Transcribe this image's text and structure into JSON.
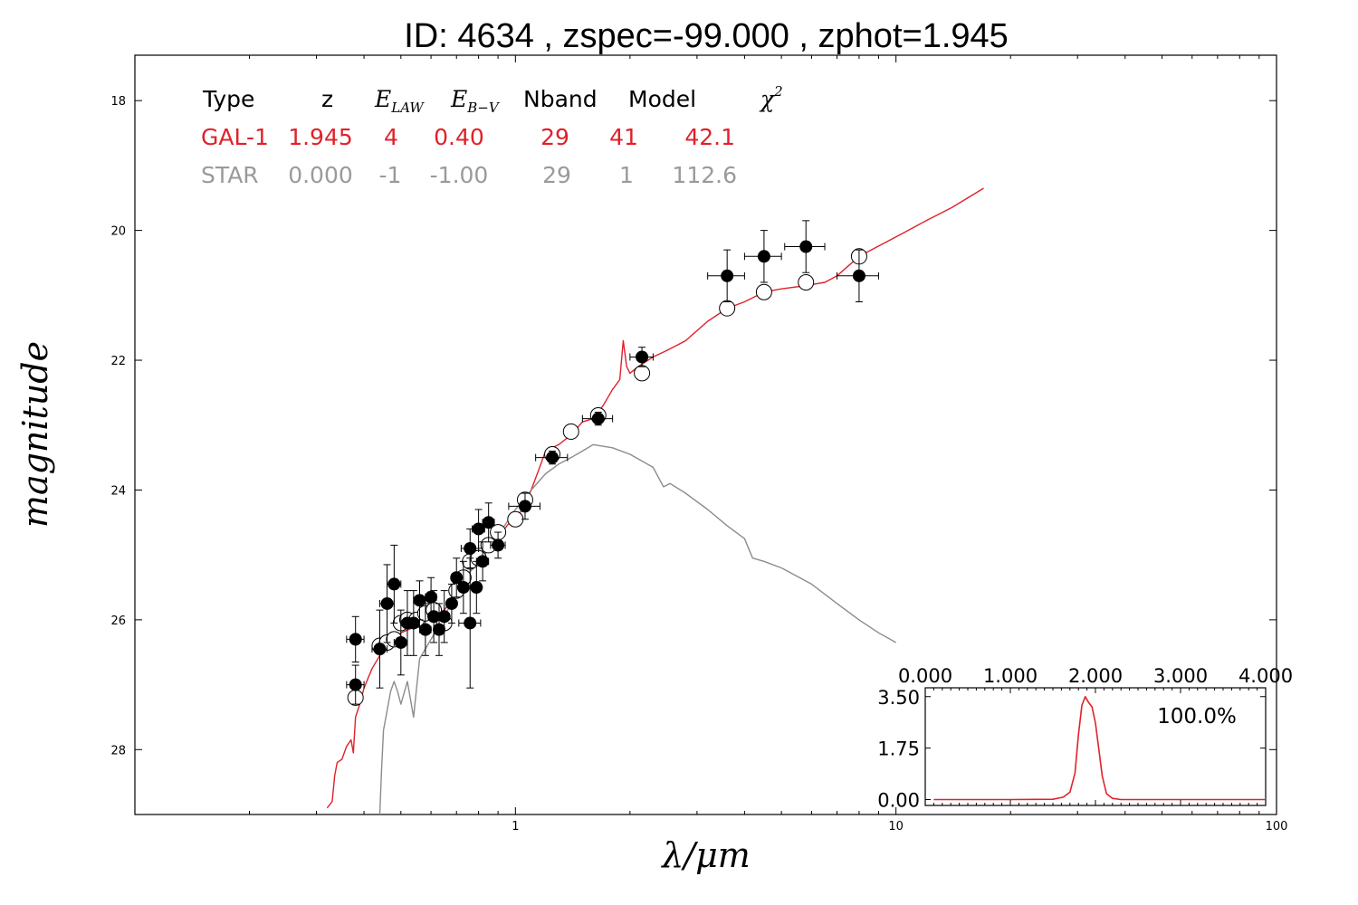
{
  "title": "ID:  4634  , zspec=-99.000 , zphot=1.945",
  "colors": {
    "galaxy": "#e0212a",
    "star": "#8c8c8c",
    "points": "#000000"
  },
  "table": {
    "headers": {
      "type": "Type",
      "z": "z",
      "elaw_main": "E",
      "elaw_sub": "LAW",
      "ebv_main": "E",
      "ebv_sub": "B−V",
      "nband": "Nband",
      "model": "Model",
      "chi_main": "χ",
      "chi_sup": "2"
    },
    "rows": [
      {
        "type": "GAL-1",
        "z": "1.945",
        "elaw": "4",
        "ebv": "0.40",
        "nband": "29",
        "model": "41",
        "chi2": "42.1",
        "color": "#e0212a"
      },
      {
        "type": "STAR",
        "z": "0.000",
        "elaw": "-1",
        "ebv": "-1.00",
        "nband": "29",
        "model": "1",
        "chi2": "112.6",
        "color": "#9a9a9a"
      }
    ]
  },
  "chart_data": [
    {
      "type": "scatter",
      "title": "ID:  4634  , zspec=-99.000 , zphot=1.945",
      "xlabel": "λ/μm",
      "ylabel": "magnitude",
      "xscale": "log",
      "xlim": [
        0.1,
        100
      ],
      "ylim": [
        29.0,
        17.3
      ],
      "xticks": [
        1,
        10,
        100
      ],
      "xtick_labels": [
        "1",
        "10",
        "100"
      ],
      "yticks": [
        18,
        20,
        22,
        24,
        26,
        28
      ],
      "ytick_labels": [
        "18",
        "20",
        "22",
        "24",
        "26",
        "28"
      ],
      "grid": false,
      "observed": [
        {
          "x": 0.38,
          "y": 26.3,
          "ye": 0.35,
          "xe": 0.02
        },
        {
          "x": 0.38,
          "y": 27.0,
          "ye": 0.3,
          "xe": 0.02
        },
        {
          "x": 0.44,
          "y": 26.45,
          "ye": 0.6,
          "xe": 0.02
        },
        {
          "x": 0.46,
          "y": 25.75,
          "ye": 0.6,
          "xe": 0.02
        },
        {
          "x": 0.48,
          "y": 25.45,
          "ye": 0.6,
          "xe": 0.02
        },
        {
          "x": 0.5,
          "y": 26.35,
          "ye": 0.5,
          "xe": 0.02
        },
        {
          "x": 0.52,
          "y": 26.05,
          "ye": 0.5,
          "xe": 0.02
        },
        {
          "x": 0.54,
          "y": 26.05,
          "ye": 0.5,
          "xe": 0.02
        },
        {
          "x": 0.56,
          "y": 25.7,
          "ye": 0.3,
          "xe": 0.02
        },
        {
          "x": 0.58,
          "y": 26.15,
          "ye": 0.4,
          "xe": 0.02
        },
        {
          "x": 0.6,
          "y": 25.65,
          "ye": 0.3,
          "xe": 0.02
        },
        {
          "x": 0.61,
          "y": 25.95,
          "ye": 0.4,
          "xe": 0.02
        },
        {
          "x": 0.63,
          "y": 26.15,
          "ye": 0.4,
          "xe": 0.02
        },
        {
          "x": 0.65,
          "y": 25.95,
          "ye": 0.4,
          "xe": 0.02
        },
        {
          "x": 0.68,
          "y": 25.75,
          "ye": 0.3,
          "xe": 0.02
        },
        {
          "x": 0.7,
          "y": 25.35,
          "ye": 0.3,
          "xe": 0.02
        },
        {
          "x": 0.73,
          "y": 25.5,
          "ye": 0.4,
          "xe": 0.02
        },
        {
          "x": 0.76,
          "y": 26.05,
          "ye": 1.0,
          "xe": 0.05
        },
        {
          "x": 0.76,
          "y": 24.9,
          "ye": 0.3,
          "xe": 0.04
        },
        {
          "x": 0.79,
          "y": 25.5,
          "ye": 0.4,
          "xe": 0.02
        },
        {
          "x": 0.8,
          "y": 24.6,
          "ye": 0.3,
          "xe": 0.03
        },
        {
          "x": 0.82,
          "y": 25.1,
          "ye": 0.3,
          "xe": 0.03
        },
        {
          "x": 0.85,
          "y": 24.5,
          "ye": 0.3,
          "xe": 0.03
        },
        {
          "x": 0.9,
          "y": 24.85,
          "ye": 0.2,
          "xe": 0.04
        },
        {
          "x": 1.06,
          "y": 24.25,
          "ye": 0.2,
          "xe": 0.1
        },
        {
          "x": 1.25,
          "y": 23.5,
          "ye": 0.1,
          "xe": 0.12
        },
        {
          "x": 1.65,
          "y": 22.9,
          "ye": 0.1,
          "xe": 0.15
        },
        {
          "x": 2.15,
          "y": 21.95,
          "ye": 0.15,
          "xe": 0.15
        },
        {
          "x": 3.6,
          "y": 20.7,
          "ye": 0.4,
          "xe": 0.4
        },
        {
          "x": 4.5,
          "y": 20.4,
          "ye": 0.4,
          "xe": 0.5
        },
        {
          "x": 5.8,
          "y": 20.25,
          "ye": 0.4,
          "xe": 0.7
        },
        {
          "x": 8.0,
          "y": 20.7,
          "ye": 0.4,
          "xe": 1.0
        }
      ],
      "model_magnitudes": [
        {
          "x": 0.38,
          "y": 27.2
        },
        {
          "x": 0.44,
          "y": 26.4
        },
        {
          "x": 0.46,
          "y": 26.35
        },
        {
          "x": 0.48,
          "y": 26.3
        },
        {
          "x": 0.5,
          "y": 26.05
        },
        {
          "x": 0.52,
          "y": 26.0
        },
        {
          "x": 0.55,
          "y": 26.0
        },
        {
          "x": 0.58,
          "y": 25.9
        },
        {
          "x": 0.61,
          "y": 25.85
        },
        {
          "x": 0.65,
          "y": 26.05
        },
        {
          "x": 0.7,
          "y": 25.55
        },
        {
          "x": 0.73,
          "y": 25.35
        },
        {
          "x": 0.76,
          "y": 25.1
        },
        {
          "x": 0.8,
          "y": 25.05
        },
        {
          "x": 0.85,
          "y": 24.85
        },
        {
          "x": 0.9,
          "y": 24.65
        },
        {
          "x": 1.0,
          "y": 24.45
        },
        {
          "x": 1.06,
          "y": 24.15
        },
        {
          "x": 1.25,
          "y": 23.45
        },
        {
          "x": 1.4,
          "y": 23.1
        },
        {
          "x": 1.65,
          "y": 22.85
        },
        {
          "x": 2.15,
          "y": 22.2
        },
        {
          "x": 3.6,
          "y": 21.2
        },
        {
          "x": 4.5,
          "y": 20.95
        },
        {
          "x": 5.8,
          "y": 20.8
        },
        {
          "x": 8.0,
          "y": 20.4
        }
      ],
      "series": [
        {
          "color": "#e0212a",
          "points": [
            [
              0.32,
              28.9
            ],
            [
              0.33,
              28.8
            ],
            [
              0.335,
              28.4
            ],
            [
              0.34,
              28.2
            ],
            [
              0.35,
              28.15
            ],
            [
              0.36,
              27.95
            ],
            [
              0.37,
              27.85
            ],
            [
              0.375,
              28.05
            ],
            [
              0.38,
              27.5
            ],
            [
              0.39,
              27.3
            ],
            [
              0.4,
              27.05
            ],
            [
              0.42,
              26.75
            ],
            [
              0.44,
              26.55
            ],
            [
              0.46,
              26.4
            ],
            [
              0.5,
              26.2
            ],
            [
              0.55,
              26.1
            ],
            [
              0.6,
              25.95
            ],
            [
              0.65,
              25.85
            ],
            [
              0.7,
              25.6
            ],
            [
              0.75,
              25.3
            ],
            [
              0.8,
              25.1
            ],
            [
              0.9,
              24.75
            ],
            [
              0.95,
              24.55
            ],
            [
              1.0,
              24.4
            ],
            [
              1.05,
              24.3
            ],
            [
              1.1,
              24.0
            ],
            [
              1.15,
              23.7
            ],
            [
              1.2,
              23.4
            ],
            [
              1.3,
              23.3
            ],
            [
              1.4,
              23.15
            ],
            [
              1.5,
              22.95
            ],
            [
              1.6,
              22.9
            ],
            [
              1.7,
              22.7
            ],
            [
              1.8,
              22.45
            ],
            [
              1.88,
              22.3
            ],
            [
              1.92,
              21.7
            ],
            [
              1.96,
              22.1
            ],
            [
              2.0,
              22.2
            ],
            [
              2.1,
              22.1
            ],
            [
              2.3,
              21.95
            ],
            [
              2.5,
              21.85
            ],
            [
              2.8,
              21.7
            ],
            [
              3.2,
              21.4
            ],
            [
              3.6,
              21.2
            ],
            [
              4.0,
              21.1
            ],
            [
              4.5,
              20.95
            ],
            [
              5.0,
              20.9
            ],
            [
              5.8,
              20.85
            ],
            [
              6.5,
              20.8
            ],
            [
              7.0,
              20.7
            ],
            [
              8.0,
              20.4
            ],
            [
              10.0,
              20.1
            ],
            [
              12.0,
              19.85
            ],
            [
              14.0,
              19.65
            ],
            [
              17.0,
              19.35
            ]
          ]
        },
        {
          "color": "#8c8c8c",
          "points": [
            [
              0.44,
              29.0
            ],
            [
              0.445,
              28.3
            ],
            [
              0.45,
              27.7
            ],
            [
              0.46,
              27.4
            ],
            [
              0.47,
              27.1
            ],
            [
              0.48,
              26.95
            ],
            [
              0.49,
              27.1
            ],
            [
              0.5,
              27.3
            ],
            [
              0.52,
              26.95
            ],
            [
              0.54,
              27.5
            ],
            [
              0.56,
              26.6
            ],
            [
              0.6,
              26.3
            ],
            [
              0.65,
              25.95
            ],
            [
              0.7,
              25.6
            ],
            [
              0.75,
              25.3
            ],
            [
              0.8,
              25.1
            ],
            [
              0.9,
              24.7
            ],
            [
              1.0,
              24.3
            ],
            [
              1.1,
              24.0
            ],
            [
              1.2,
              23.75
            ],
            [
              1.3,
              23.6
            ],
            [
              1.4,
              23.5
            ],
            [
              1.5,
              23.4
            ],
            [
              1.6,
              23.3
            ],
            [
              1.8,
              23.35
            ],
            [
              2.0,
              23.45
            ],
            [
              2.3,
              23.65
            ],
            [
              2.45,
              23.95
            ],
            [
              2.55,
              23.9
            ],
            [
              2.8,
              24.05
            ],
            [
              3.2,
              24.3
            ],
            [
              3.6,
              24.55
            ],
            [
              4.0,
              24.75
            ],
            [
              4.2,
              25.05
            ],
            [
              4.5,
              25.1
            ],
            [
              5.0,
              25.2
            ],
            [
              6.0,
              25.45
            ],
            [
              7.0,
              25.75
            ],
            [
              8.0,
              26.0
            ],
            [
              9.0,
              26.2
            ],
            [
              10.0,
              26.35
            ]
          ]
        }
      ]
    },
    {
      "type": "line",
      "xlim": [
        0.0,
        4.0
      ],
      "ylim": [
        -0.2,
        3.8
      ],
      "xticks": [
        0,
        1,
        2,
        3,
        4
      ],
      "xtick_labels": [
        "0.000",
        "1.000",
        "2.000",
        "3.000",
        "4.000"
      ],
      "yticks": [
        0,
        1.75,
        3.5
      ],
      "ytick_labels": [
        "0.00",
        "1.75",
        "3.50"
      ],
      "annotation": "100.0%",
      "series": [
        {
          "color": "#e0212a",
          "points": [
            [
              0.1,
              0.0
            ],
            [
              1.0,
              0.0
            ],
            [
              1.5,
              0.01
            ],
            [
              1.62,
              0.08
            ],
            [
              1.7,
              0.25
            ],
            [
              1.76,
              0.9
            ],
            [
              1.8,
              2.2
            ],
            [
              1.84,
              3.2
            ],
            [
              1.88,
              3.5
            ],
            [
              1.92,
              3.3
            ],
            [
              1.96,
              3.15
            ],
            [
              2.0,
              2.6
            ],
            [
              2.04,
              1.7
            ],
            [
              2.08,
              0.8
            ],
            [
              2.13,
              0.2
            ],
            [
              2.2,
              0.04
            ],
            [
              2.3,
              0.0
            ],
            [
              4.0,
              0.0
            ]
          ]
        }
      ]
    }
  ]
}
